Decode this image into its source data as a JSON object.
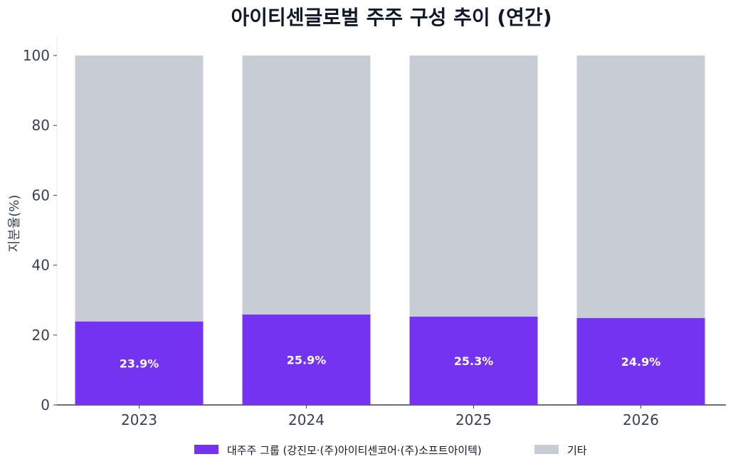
{
  "chart_data": {
    "type": "bar",
    "stacked": true,
    "title": "아이티센글로벌 주주 구성 추이 (연간)",
    "xlabel": "",
    "ylabel": "지분율(%)",
    "categories": [
      "2023",
      "2024",
      "2025",
      "2026"
    ],
    "ylim": [
      0,
      100
    ],
    "yticks": [
      0,
      20,
      40,
      60,
      80,
      100
    ],
    "grid": false,
    "legend_position": "bottom-center",
    "series": [
      {
        "name": "대주주 그룹 (강진모·(주)아이티센코어·(주)소프트아이텍)",
        "values": [
          23.9,
          25.9,
          25.3,
          24.9
        ],
        "labels": [
          "23.9%",
          "25.9%",
          "25.3%",
          "24.9%"
        ],
        "color": "#7433F0"
      },
      {
        "name": "기타",
        "values": [
          76.1,
          74.1,
          74.7,
          75.1
        ],
        "color": "#C8CCD5"
      }
    ]
  }
}
